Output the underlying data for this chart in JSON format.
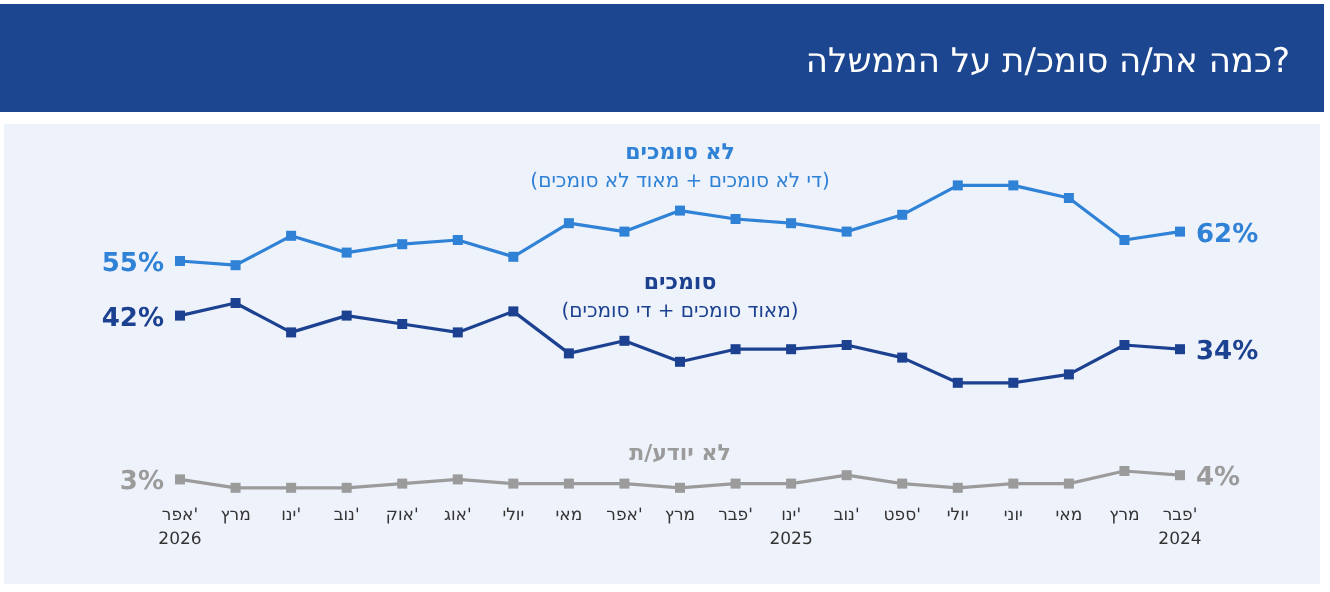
{
  "chart_data": {
    "type": "line",
    "title": "כמה את/ה סומכ/ת על הממשלה?",
    "categories": [
      "אפר'\n2026",
      "מרץ",
      "ינו'",
      "נוב'",
      "אוק'",
      "אוג'",
      "יולי",
      "מאי",
      "אפר'",
      "מרץ",
      "פבר'",
      "ינו'\n2025",
      "נוב'",
      "ספט'",
      "יולי",
      "יוני",
      "מאי",
      "מרץ",
      "פבר'\n2024"
    ],
    "series": [
      {
        "name": "לא סומכים",
        "color": "#2f82d6",
        "values": [
          55,
          54,
          61,
          57,
          59,
          60,
          56,
          64,
          62,
          67,
          65,
          64,
          62,
          66,
          73,
          73,
          70,
          60,
          62
        ],
        "value_labels": [
          "55%",
          null,
          null,
          null,
          null,
          null,
          null,
          null,
          null,
          null,
          null,
          null,
          null,
          null,
          null,
          null,
          null,
          null,
          "62%"
        ]
      },
      {
        "name": "סומכים",
        "color": "#1c4190",
        "values": [
          42,
          45,
          38,
          42,
          40,
          38,
          43,
          33,
          36,
          31,
          34,
          34,
          35,
          32,
          26,
          26,
          28,
          35,
          34
        ],
        "value_labels": [
          "42%",
          null,
          null,
          null,
          null,
          null,
          null,
          null,
          null,
          null,
          null,
          null,
          null,
          null,
          null,
          null,
          null,
          null,
          "34%"
        ]
      },
      {
        "name": "לא יודע/ת",
        "color": "#9b9b9b",
        "values": [
          3,
          1,
          1,
          1,
          2,
          3,
          2,
          2,
          2,
          1,
          2,
          2,
          4,
          2,
          1,
          2,
          2,
          5,
          4
        ],
        "value_labels": [
          "3%",
          null,
          null,
          null,
          null,
          null,
          null,
          null,
          null,
          null,
          null,
          null,
          null,
          null,
          null,
          null,
          null,
          null,
          "4%"
        ]
      }
    ],
    "annotations": [
      "(די לא סומכים + מאוד לא סומכים)",
      "(מאוד סומכים + די סומכים)"
    ],
    "tick_labels": "x",
    "marker": "square",
    "line_style": "solid"
  }
}
